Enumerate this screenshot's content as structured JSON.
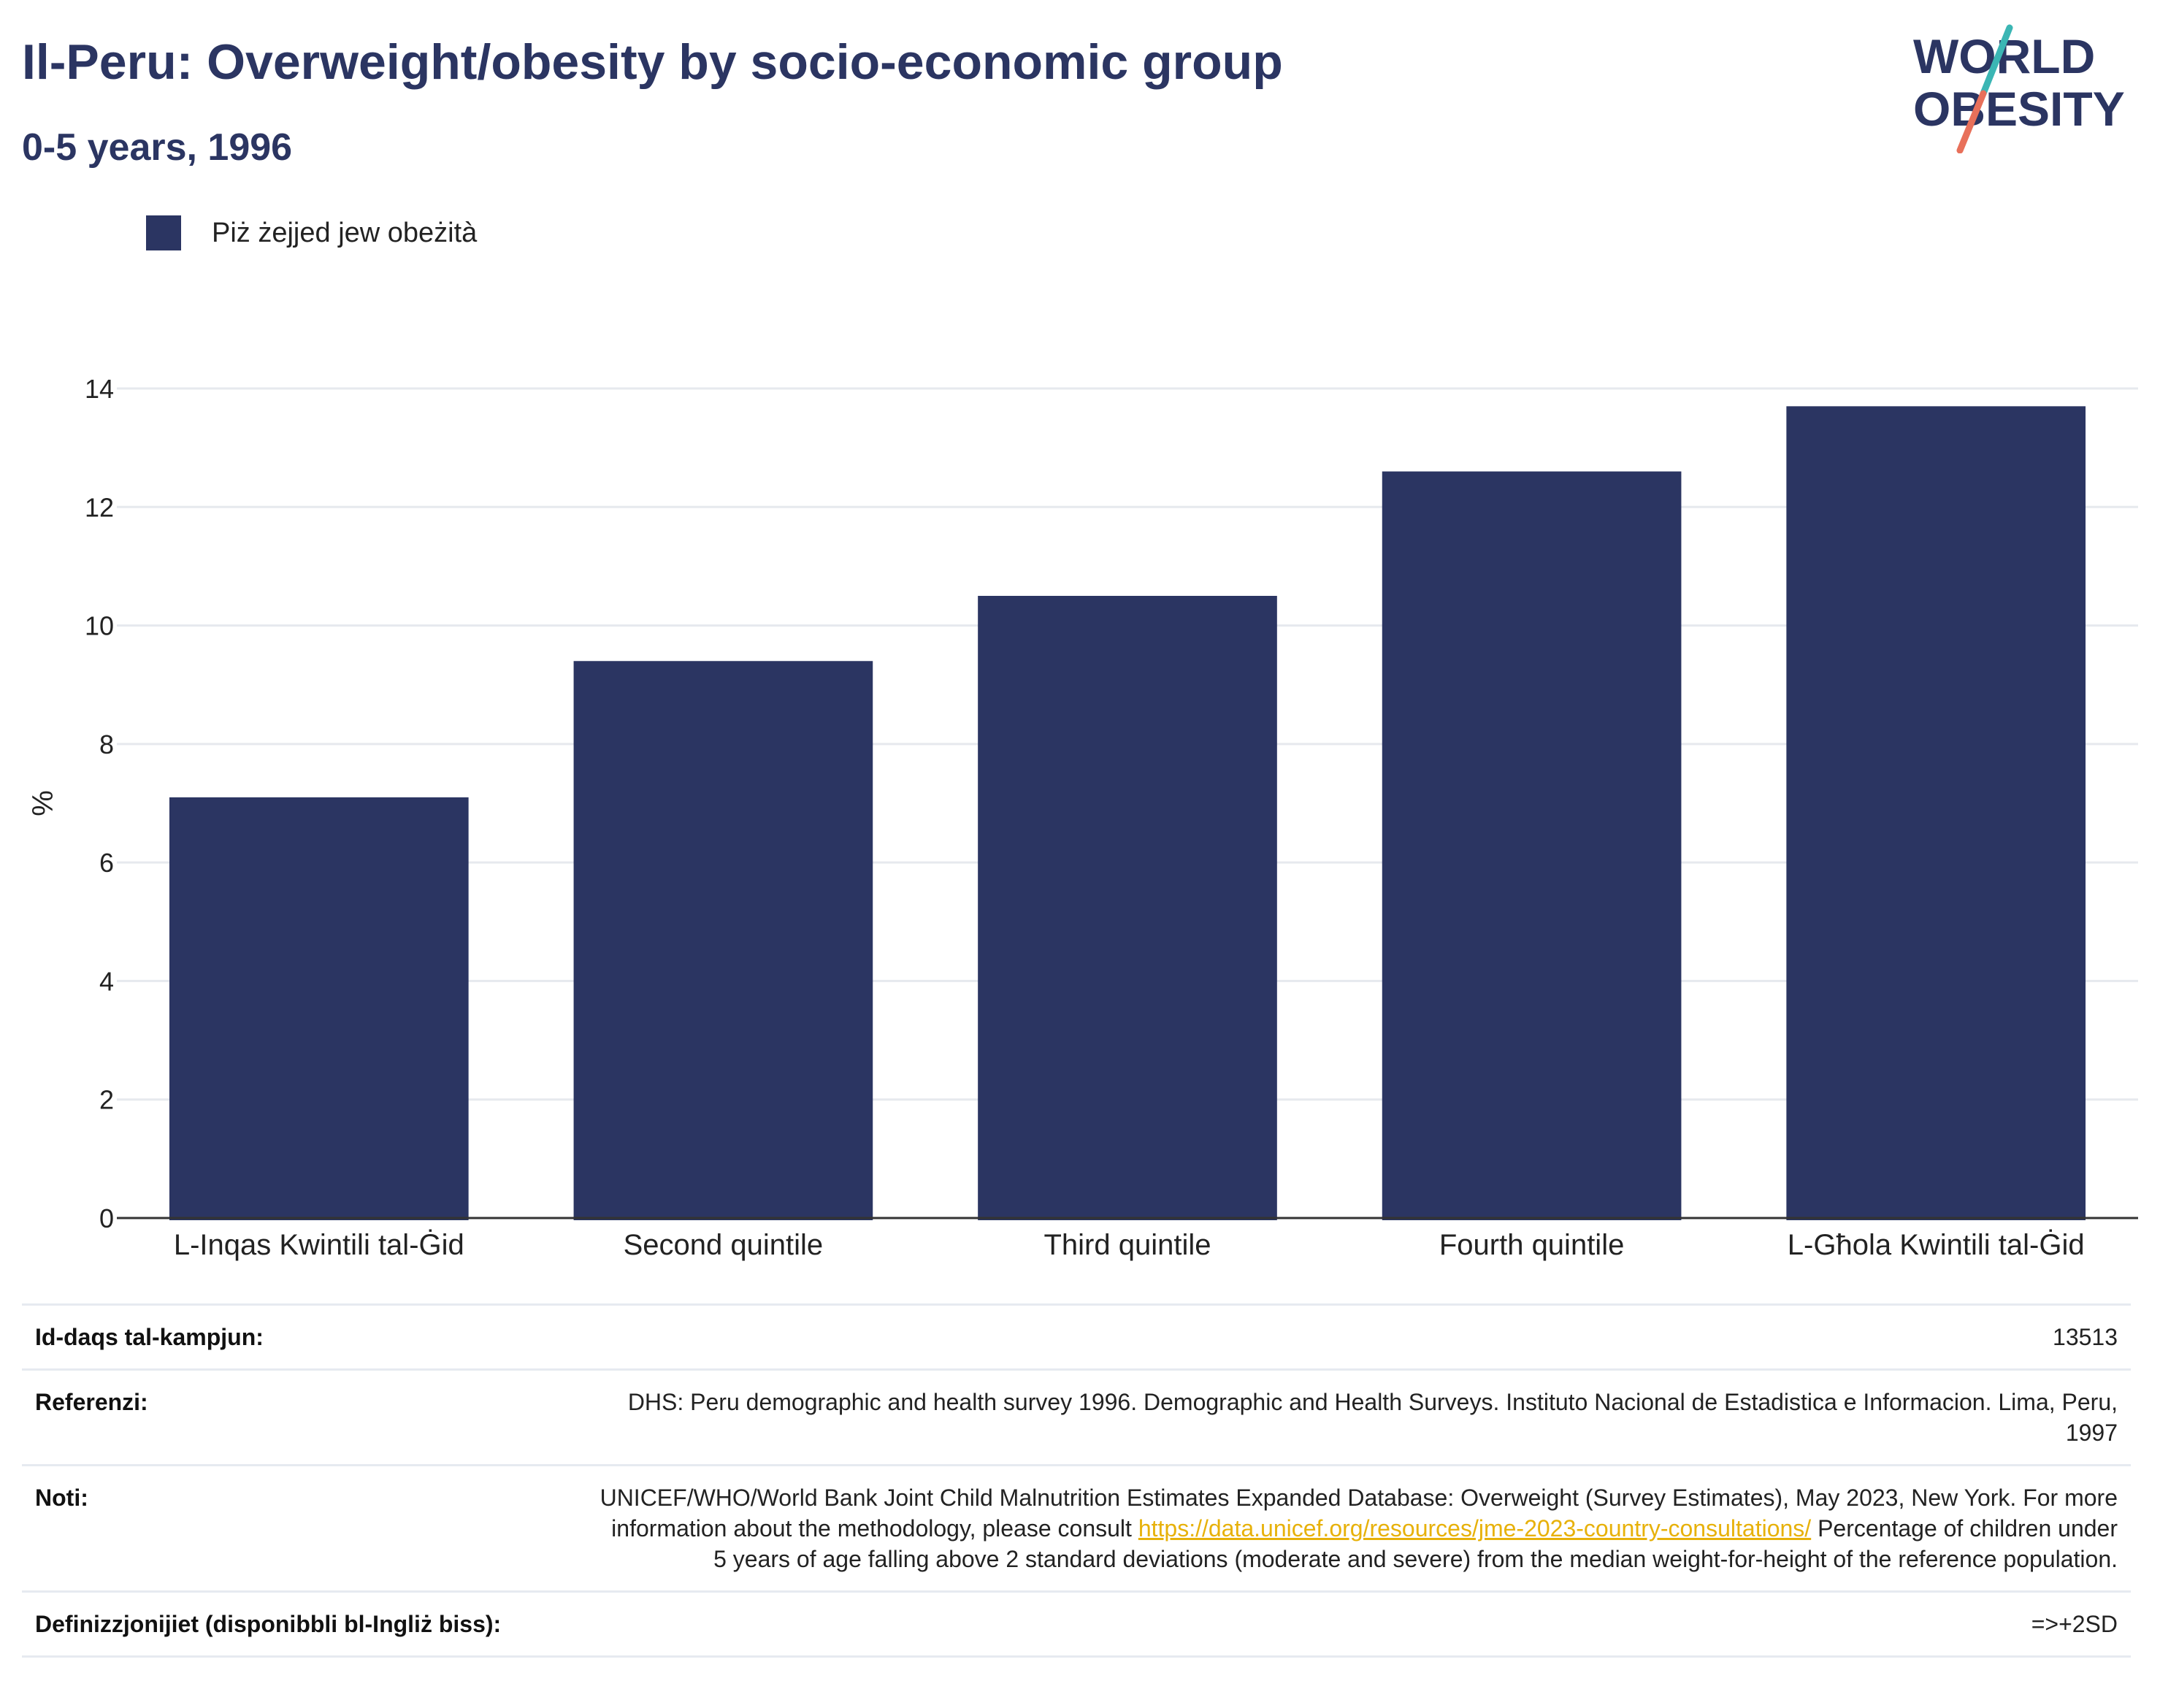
{
  "header": {
    "title": "Il-Peru: Overweight/obesity by socio-economic group",
    "subtitle": "0-5 years, 1996"
  },
  "logo": {
    "line1": "WORLD",
    "line2": "OBESITY"
  },
  "colors": {
    "bar": "#2b3562",
    "title": "#2b3562",
    "gridline": "#e6e9ee",
    "link": "#e7b10a",
    "logo_teal": "#3bb6b4",
    "logo_coral": "#e8705a"
  },
  "legend": {
    "label": "Piż żejjed jew obeżità"
  },
  "chart_data": {
    "type": "bar",
    "categories": [
      "L-Inqas Kwintili tal-Ġid",
      "Second quintile",
      "Third quintile",
      "Fourth quintile",
      "L-Għola Kwintili tal-Ġid"
    ],
    "series": [
      {
        "name": "Piż żejjed jew obeżità",
        "values": [
          7.1,
          9.4,
          10.5,
          12.6,
          13.7
        ]
      }
    ],
    "ylabel": "%",
    "ylim": [
      0,
      14
    ],
    "yticks": [
      0,
      2,
      4,
      6,
      8,
      10,
      12,
      14
    ],
    "grid": true,
    "legend_position": "top-left"
  },
  "info": {
    "sample_label": "Id-daqs tal-kampjun:",
    "sample_value": "13513",
    "references_label": "Referenzi:",
    "references_value": "DHS: Peru demographic and health survey 1996. Demographic and Health Surveys. Instituto Nacional de Estadistica e Informacion. Lima, Peru, 1997",
    "notes_label": "Noti:",
    "notes_text_1": "UNICEF/WHO/World Bank Joint Child Malnutrition Estimates Expanded Database: Overweight (Survey Estimates), May 2023, New York. For more information about the methodology, please consult",
    "notes_link": "https://data.unicef.org/resources/jme-2023-country-consultations/",
    "notes_text_2": "Percentage of children under 5 years of age falling above 2 standard deviations (moderate and severe) from the median weight-for-height of the reference population.",
    "definitions_label": "Definizzjonijiet (disponibbli bl-Ingliż biss):",
    "definitions_value": "=>+2SD"
  }
}
